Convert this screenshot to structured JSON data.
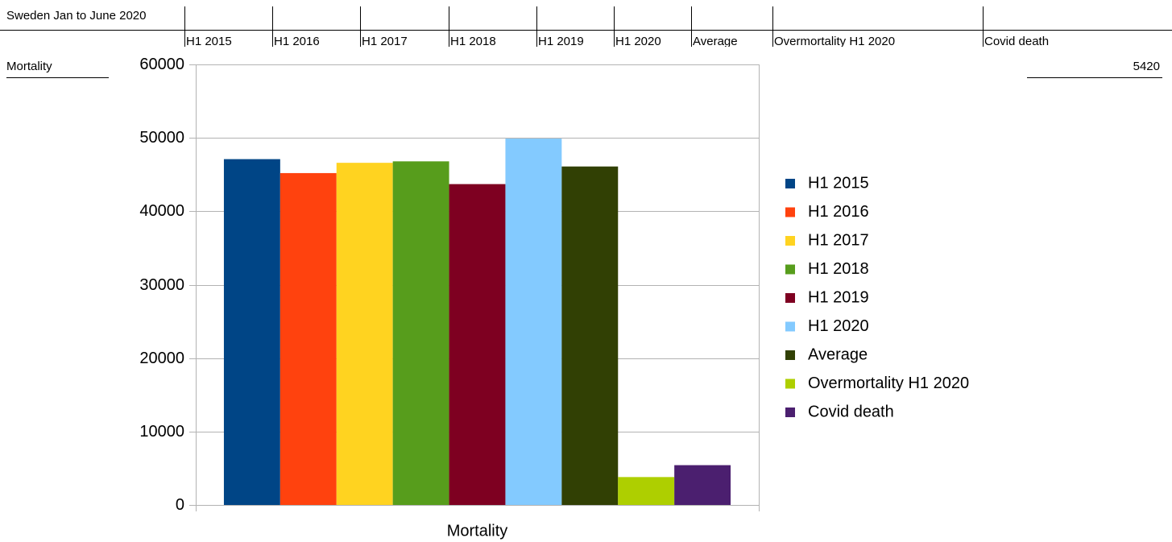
{
  "sheet": {
    "title": "Sweden Jan to June 2020"
  },
  "chart_data": {
    "type": "bar",
    "categories": [
      "Mortality"
    ],
    "series": [
      {
        "name": "H1 2015",
        "color": "#004586",
        "values": [
          47100
        ]
      },
      {
        "name": "H1 2016",
        "color": "#ff420e",
        "values": [
          45200
        ]
      },
      {
        "name": "H1 2017",
        "color": "#ffd320",
        "values": [
          46600
        ]
      },
      {
        "name": "H1 2018",
        "color": "#579d1c",
        "values": [
          46800
        ]
      },
      {
        "name": "H1 2019",
        "color": "#7e0021",
        "values": [
          43700
        ]
      },
      {
        "name": "H1 2020",
        "color": "#83caff",
        "values": [
          49900
        ]
      },
      {
        "name": "Average",
        "color": "#314004",
        "values": [
          46100
        ]
      },
      {
        "name": "Overmortality H1 2020",
        "color": "#aecf00",
        "values": [
          3800
        ]
      },
      {
        "name": "Covid death",
        "color": "#4b1f6f",
        "values": [
          5420
        ]
      }
    ],
    "ylim": [
      0,
      60000
    ],
    "yticks": [
      0,
      10000,
      20000,
      30000,
      40000,
      50000,
      60000
    ],
    "grid": true,
    "legend": "right"
  }
}
